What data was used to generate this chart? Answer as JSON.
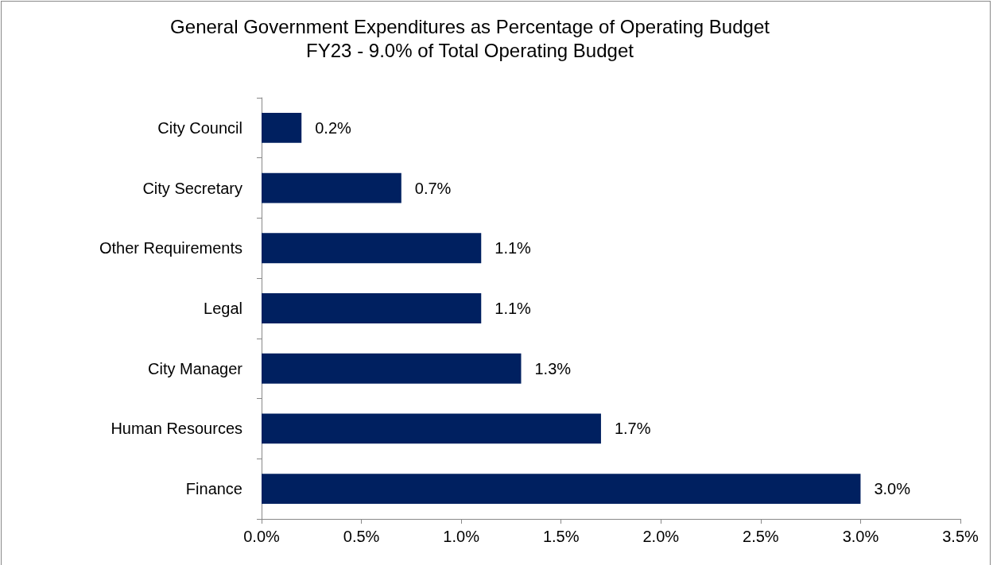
{
  "chart_data": {
    "type": "bar",
    "orientation": "horizontal",
    "title": "General Government Expenditures as Percentage of Operating Budget",
    "subtitle": "FY23 - 9.0% of Total Operating Budget",
    "categories": [
      "City Council",
      "City Secretary",
      "Other Requirements",
      "Legal",
      "City Manager",
      "Human Resources",
      "Finance"
    ],
    "values": [
      0.2,
      0.7,
      1.1,
      1.1,
      1.3,
      1.7,
      3.0
    ],
    "value_labels": [
      "0.2%",
      "0.7%",
      "1.1%",
      "1.1%",
      "1.3%",
      "1.7%",
      "3.0%"
    ],
    "color": "#002060",
    "xlim": [
      0,
      3.5
    ],
    "xticks": [
      {
        "value": 0,
        "label": "0.0%"
      },
      {
        "value": 0.5,
        "label": "0.5%"
      },
      {
        "value": 1,
        "label": "1.0%"
      },
      {
        "value": 1.5,
        "label": "1.5%"
      },
      {
        "value": 2,
        "label": "2.0%"
      },
      {
        "value": 2.5,
        "label": "2.5%"
      },
      {
        "value": 3,
        "label": "3.0%"
      },
      {
        "value": 3.5,
        "label": "3.5%"
      }
    ],
    "grid": false
  }
}
